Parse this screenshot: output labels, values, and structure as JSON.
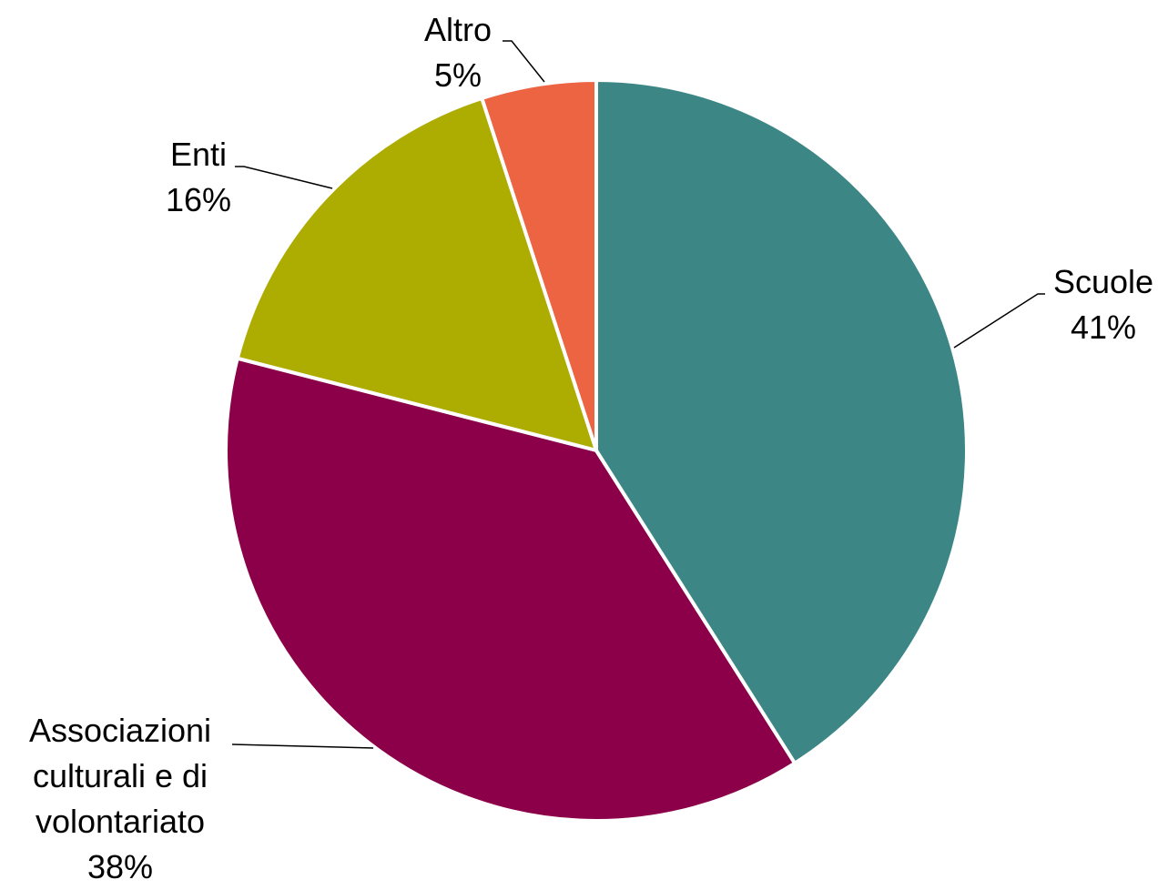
{
  "chart_data": {
    "type": "pie",
    "categories": [
      "Scuole",
      "Associazioni culturali e di volontariato",
      "Enti",
      "Altro"
    ],
    "values": [
      41,
      38,
      16,
      5
    ],
    "value_labels": [
      "41%",
      "38%",
      "16%",
      "5%"
    ],
    "colors": [
      "#3d8686",
      "#8b0048",
      "#adac00",
      "#ec6442"
    ]
  }
}
